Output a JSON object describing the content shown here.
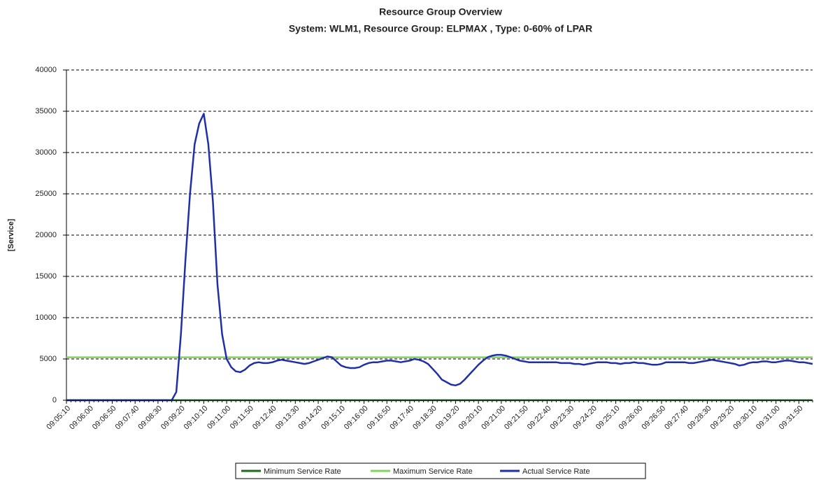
{
  "chart_data": {
    "type": "line",
    "title": "Resource Group Overview",
    "subtitle": "System: WLM1, Resource Group: ELPMAX  , Type: 0-60% of LPAR",
    "y_label": "[Service]",
    "categories": [
      "09:05:10",
      null,
      null,
      null,
      null,
      "09:06:00",
      null,
      null,
      null,
      null,
      "09:06:50",
      null,
      null,
      null,
      null,
      "09:07:40",
      null,
      null,
      null,
      null,
      "09:08:30",
      null,
      null,
      null,
      null,
      "09:09:20",
      null,
      null,
      null,
      null,
      "09:10:10",
      null,
      null,
      null,
      null,
      "09:11:00",
      null,
      null,
      null,
      null,
      "09:11:50",
      null,
      null,
      null,
      null,
      "09:12:40",
      null,
      null,
      null,
      null,
      "09:13:30",
      null,
      null,
      null,
      null,
      "09:14:20",
      null,
      null,
      null,
      null,
      "09:15:10",
      null,
      null,
      null,
      null,
      "09:16:00",
      null,
      null,
      null,
      null,
      "09:16:50",
      null,
      null,
      null,
      null,
      "09:17:40",
      null,
      null,
      null,
      null,
      "09:18:30",
      null,
      null,
      null,
      null,
      "09:19:20",
      null,
      null,
      null,
      null,
      "09:20:10",
      null,
      null,
      null,
      null,
      "09:21:00",
      null,
      null,
      null,
      null,
      "09:21:50",
      null,
      null,
      null,
      null,
      "09:22:40",
      null,
      null,
      null,
      null,
      "09:23:30",
      null,
      null,
      null,
      null,
      "09:24:20",
      null,
      null,
      null,
      null,
      "09:25:10",
      null,
      null,
      null,
      null,
      "09:26:00",
      null,
      null,
      null,
      null,
      "09:26:50",
      null,
      null,
      null,
      null,
      "09:27:40",
      null,
      null,
      null,
      null,
      "09:28:30",
      null,
      null,
      null,
      null,
      "09:29:20",
      null,
      null,
      null,
      null,
      "09:30:10",
      null,
      null,
      null,
      null,
      "09:31:00",
      null,
      null,
      null,
      null,
      "09:31:50",
      null,
      null,
      null
    ],
    "series": [
      {
        "name": "Minimum Service Rate",
        "color": "#1e6b1e",
        "values": [
          0,
          0,
          0,
          0,
          0,
          0,
          0,
          0,
          0,
          0,
          0,
          0,
          0,
          0,
          0,
          0,
          0,
          0,
          0,
          0,
          0,
          0,
          0,
          0,
          0,
          0,
          0,
          0,
          0,
          0,
          0,
          0,
          0,
          0,
          0,
          0,
          0,
          0,
          0,
          0,
          0,
          0,
          0,
          0,
          0,
          0,
          0,
          0,
          0,
          0,
          0,
          0,
          0,
          0,
          0,
          0,
          0,
          0,
          0,
          0,
          0,
          0,
          0,
          0,
          0,
          0,
          0,
          0,
          0,
          0,
          0,
          0,
          0,
          0,
          0,
          0,
          0,
          0,
          0,
          0,
          0,
          0,
          0,
          0,
          0,
          0,
          0,
          0,
          0,
          0,
          0,
          0,
          0,
          0,
          0,
          0,
          0,
          0,
          0,
          0,
          0,
          0,
          0,
          0,
          0,
          0,
          0,
          0,
          0,
          0,
          0,
          0,
          0,
          0,
          0,
          0,
          0,
          0,
          0,
          0,
          0,
          0,
          0,
          0,
          0,
          0,
          0,
          0,
          0,
          0,
          0,
          0,
          0,
          0,
          0,
          0,
          0,
          0,
          0,
          0,
          0,
          0,
          0,
          0,
          0,
          0,
          0,
          0,
          0,
          0,
          0,
          0,
          0,
          0,
          0,
          0,
          0,
          0,
          0,
          0,
          0,
          0,
          0,
          0
        ]
      },
      {
        "name": "Maximum Service Rate",
        "color": "#80d45c",
        "values": [
          5200,
          5200,
          5200,
          5200,
          5200,
          5200,
          5200,
          5200,
          5200,
          5200,
          5200,
          5200,
          5200,
          5200,
          5200,
          5200,
          5200,
          5200,
          5200,
          5200,
          5200,
          5200,
          5200,
          5200,
          5200,
          5200,
          5200,
          5200,
          5200,
          5200,
          5200,
          5200,
          5200,
          5200,
          5200,
          5200,
          5200,
          5200,
          5200,
          5200,
          5200,
          5200,
          5200,
          5200,
          5200,
          5200,
          5200,
          5200,
          5200,
          5200,
          5200,
          5200,
          5200,
          5200,
          5200,
          5200,
          5200,
          5200,
          5200,
          5200,
          5200,
          5200,
          5200,
          5200,
          5200,
          5200,
          5200,
          5200,
          5200,
          5200,
          5200,
          5200,
          5200,
          5200,
          5200,
          5200,
          5200,
          5200,
          5200,
          5200,
          5200,
          5200,
          5200,
          5200,
          5200,
          5200,
          5200,
          5200,
          5200,
          5200,
          5200,
          5200,
          5200,
          5200,
          5200,
          5200,
          5200,
          5200,
          5200,
          5200,
          5200,
          5200,
          5200,
          5200,
          5200,
          5200,
          5200,
          5200,
          5200,
          5200,
          5200,
          5200,
          5200,
          5200,
          5200,
          5200,
          5200,
          5200,
          5200,
          5200,
          5200,
          5200,
          5200,
          5200,
          5200,
          5200,
          5200,
          5200,
          5200,
          5200,
          5200,
          5200,
          5200,
          5200,
          5200,
          5200,
          5200,
          5200,
          5200,
          5200,
          5200,
          5200,
          5200,
          5200,
          5200,
          5200,
          5200,
          5200,
          5200,
          5200,
          5200,
          5200,
          5200,
          5200,
          5200,
          5200,
          5200,
          5200,
          5200,
          5200,
          5200,
          5200,
          5200,
          5200
        ]
      },
      {
        "name": "Actual Service Rate",
        "color": "#1f2fa8",
        "values": [
          0,
          0,
          0,
          0,
          0,
          0,
          0,
          0,
          0,
          0,
          0,
          0,
          0,
          0,
          0,
          0,
          0,
          0,
          0,
          0,
          0,
          0,
          0,
          0,
          1000,
          8000,
          17000,
          25000,
          31000,
          33500,
          34700,
          31000,
          24000,
          14000,
          8000,
          5000,
          4000,
          3500,
          3400,
          3700,
          4200,
          4500,
          4600,
          4500,
          4500,
          4600,
          4800,
          4900,
          4800,
          4700,
          4600,
          4500,
          4400,
          4500,
          4700,
          4900,
          5100,
          5300,
          5200,
          4700,
          4200,
          4000,
          3900,
          3900,
          4000,
          4300,
          4500,
          4600,
          4600,
          4700,
          4800,
          4800,
          4700,
          4600,
          4700,
          4800,
          5000,
          4900,
          4700,
          4400,
          3800,
          3200,
          2500,
          2200,
          1900,
          1800,
          2000,
          2500,
          3100,
          3700,
          4300,
          4800,
          5200,
          5400,
          5500,
          5500,
          5400,
          5200,
          5000,
          4800,
          4700,
          4600,
          4600,
          4600,
          4600,
          4600,
          4600,
          4600,
          4500,
          4500,
          4500,
          4400,
          4400,
          4300,
          4400,
          4500,
          4600,
          4600,
          4600,
          4500,
          4500,
          4400,
          4500,
          4500,
          4600,
          4500,
          4500,
          4400,
          4300,
          4300,
          4400,
          4600,
          4600,
          4600,
          4600,
          4600,
          4500,
          4500,
          4600,
          4700,
          4800,
          4900,
          4800,
          4700,
          4600,
          4500,
          4400,
          4200,
          4300,
          4500,
          4600,
          4600,
          4700,
          4700,
          4600,
          4600,
          4700,
          4800,
          4800,
          4700,
          4600,
          4600,
          4500,
          4400
        ]
      }
    ],
    "ylim": [
      0,
      40000
    ],
    "yticks": [
      0,
      5000,
      10000,
      15000,
      20000,
      25000,
      30000,
      35000,
      40000
    ],
    "grid": true,
    "legend": "bottom"
  }
}
